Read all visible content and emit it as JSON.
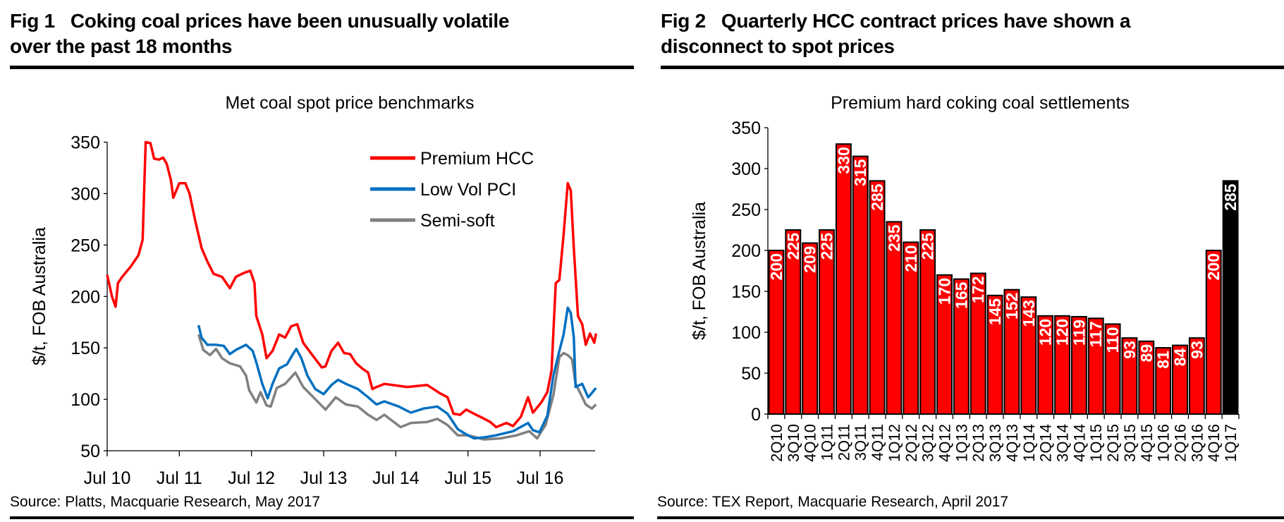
{
  "fig1": {
    "number": "Fig 1",
    "title_line1": "Coking coal prices have been unusually volatile",
    "title_line2": "over the past 18 months",
    "source": "Source: Platts, Macquarie Research, May 2017"
  },
  "fig2": {
    "number": "Fig 2",
    "title_line1": "Quarterly HCC contract prices have shown a",
    "title_line2": "disconnect to spot prices",
    "source": "Source: TEX Report, Macquarie Research, April 2017"
  },
  "chart_data": [
    {
      "type": "line",
      "title": "Met coal spot price benchmarks",
      "xlabel": "",
      "ylabel": "$/t, FOB Australia",
      "ylim": [
        50,
        350
      ],
      "yticks": [
        50,
        100,
        150,
        200,
        250,
        300,
        350
      ],
      "xticks": [
        "Jul 10",
        "Jul 11",
        "Jul 12",
        "Jul 13",
        "Jul 14",
        "Jul 15",
        "Jul 16"
      ],
      "xlim": [
        "2010-07-01",
        "2017-04-10"
      ],
      "grid": false,
      "legend": "top-right",
      "series": [
        {
          "name": "Premium HCC",
          "color": "#ff0000",
          "points": [
            [
              "2010-07-01",
              221
            ],
            [
              "2010-07-25",
              200
            ],
            [
              "2010-08-13",
              190
            ],
            [
              "2010-08-25",
              213
            ],
            [
              "2010-09-16",
              219
            ],
            [
              "2010-10-28",
              229
            ],
            [
              "2010-12-07",
              240
            ],
            [
              "2010-12-28",
              255
            ],
            [
              "2011-01-07",
              313
            ],
            [
              "2011-01-13",
              350
            ],
            [
              "2011-02-07",
              349
            ],
            [
              "2011-02-25",
              334
            ],
            [
              "2011-03-19",
              333
            ],
            [
              "2011-04-10",
              335
            ],
            [
              "2011-04-28",
              329
            ],
            [
              "2011-05-19",
              313
            ],
            [
              "2011-06-01",
              296
            ],
            [
              "2011-07-01",
              310
            ],
            [
              "2011-08-01",
              310
            ],
            [
              "2011-08-22",
              300
            ],
            [
              "2011-09-21",
              273
            ],
            [
              "2011-10-22",
              247
            ],
            [
              "2011-11-21",
              234
            ],
            [
              "2011-12-22",
              222
            ],
            [
              "2012-02-04",
              219
            ],
            [
              "2012-03-13",
              208
            ],
            [
              "2012-04-13",
              219
            ],
            [
              "2012-05-25",
              223
            ],
            [
              "2012-06-25",
              225
            ],
            [
              "2012-07-16",
              213
            ],
            [
              "2012-07-25",
              181
            ],
            [
              "2012-08-25",
              163
            ],
            [
              "2012-09-16",
              140
            ],
            [
              "2012-10-16",
              147
            ],
            [
              "2012-11-19",
              163
            ],
            [
              "2012-12-19",
              160
            ],
            [
              "2013-01-19",
              171
            ],
            [
              "2013-02-19",
              173
            ],
            [
              "2013-03-19",
              155
            ],
            [
              "2013-05-01",
              144
            ],
            [
              "2013-06-22",
              131
            ],
            [
              "2013-07-10",
              132
            ],
            [
              "2013-08-10",
              147
            ],
            [
              "2013-09-13",
              155
            ],
            [
              "2013-10-13",
              145
            ],
            [
              "2013-11-13",
              144
            ],
            [
              "2013-12-13",
              135
            ],
            [
              "2014-01-13",
              130
            ],
            [
              "2014-02-13",
              126
            ],
            [
              "2014-03-04",
              110
            ],
            [
              "2014-03-25",
              112
            ],
            [
              "2014-05-04",
              115
            ],
            [
              "2014-08-28",
              112
            ],
            [
              "2014-12-07",
              114
            ],
            [
              "2015-02-10",
              106
            ],
            [
              "2015-03-19",
              102
            ],
            [
              "2015-04-19",
              86
            ],
            [
              "2015-05-22",
              85
            ],
            [
              "2015-06-22",
              90
            ],
            [
              "2015-08-01",
              86
            ],
            [
              "2015-09-13",
              82
            ],
            [
              "2015-10-22",
              78
            ],
            [
              "2015-11-22",
              73
            ],
            [
              "2016-01-13",
              77
            ],
            [
              "2016-02-16",
              74
            ],
            [
              "2016-03-25",
              83
            ],
            [
              "2016-05-01",
              102
            ],
            [
              "2016-05-25",
              87
            ],
            [
              "2016-07-07",
              97
            ],
            [
              "2016-08-07",
              107
            ],
            [
              "2016-08-28",
              128
            ],
            [
              "2016-09-19",
              213
            ],
            [
              "2016-10-07",
              216
            ],
            [
              "2016-10-28",
              260
            ],
            [
              "2016-11-19",
              310
            ],
            [
              "2016-12-04",
              303
            ],
            [
              "2016-12-19",
              247
            ],
            [
              "2017-01-10",
              181
            ],
            [
              "2017-02-01",
              173
            ],
            [
              "2017-02-19",
              153
            ],
            [
              "2017-03-10",
              164
            ],
            [
              "2017-04-01",
              155
            ],
            [
              "2017-04-10",
              164
            ]
          ]
        },
        {
          "name": "Low Vol PCI",
          "color": "#0070c0",
          "points": [
            [
              "2011-10-07",
              172
            ],
            [
              "2011-10-22",
              160
            ],
            [
              "2011-11-21",
              153
            ],
            [
              "2012-01-04",
              153
            ],
            [
              "2012-02-13",
              152
            ],
            [
              "2012-03-13",
              144
            ],
            [
              "2012-04-13",
              148
            ],
            [
              "2012-06-04",
              153
            ],
            [
              "2012-07-07",
              147
            ],
            [
              "2012-07-25",
              136
            ],
            [
              "2012-08-25",
              115
            ],
            [
              "2012-09-22",
              101
            ],
            [
              "2012-10-16",
              115
            ],
            [
              "2012-11-19",
              130
            ],
            [
              "2012-12-28",
              134
            ],
            [
              "2013-01-28",
              144
            ],
            [
              "2013-02-15",
              149
            ],
            [
              "2013-03-10",
              140
            ],
            [
              "2013-04-10",
              123
            ],
            [
              "2013-05-19",
              110
            ],
            [
              "2013-07-01",
              105
            ],
            [
              "2013-08-10",
              114
            ],
            [
              "2013-09-13",
              119
            ],
            [
              "2013-10-22",
              115
            ],
            [
              "2013-12-22",
              110
            ],
            [
              "2014-02-13",
              102
            ],
            [
              "2014-03-25",
              95
            ],
            [
              "2014-05-04",
              98
            ],
            [
              "2014-07-16",
              93
            ],
            [
              "2014-09-16",
              87
            ],
            [
              "2014-11-19",
              91
            ],
            [
              "2015-01-28",
              93
            ],
            [
              "2015-03-19",
              86
            ],
            [
              "2015-05-10",
              71
            ],
            [
              "2015-06-22",
              66
            ],
            [
              "2015-08-01",
              62
            ],
            [
              "2015-09-22",
              63
            ],
            [
              "2015-11-22",
              65
            ],
            [
              "2016-02-16",
              69
            ],
            [
              "2016-05-01",
              77
            ],
            [
              "2016-05-25",
              70
            ],
            [
              "2016-06-28",
              68
            ],
            [
              "2016-08-07",
              84
            ],
            [
              "2016-09-07",
              123
            ],
            [
              "2016-10-07",
              147
            ],
            [
              "2016-10-28",
              163
            ],
            [
              "2016-11-19",
              189
            ],
            [
              "2016-12-04",
              184
            ],
            [
              "2016-12-19",
              160
            ],
            [
              "2016-12-28",
              112
            ],
            [
              "2017-02-01",
              115
            ],
            [
              "2017-03-01",
              102
            ],
            [
              "2017-04-10",
              111
            ]
          ]
        },
        {
          "name": "Semi-soft",
          "color": "#808080",
          "points": [
            [
              "2011-10-07",
              163
            ],
            [
              "2011-11-01",
              148
            ],
            [
              "2011-12-04",
              143
            ],
            [
              "2012-01-04",
              149
            ],
            [
              "2012-02-04",
              140
            ],
            [
              "2012-03-13",
              135
            ],
            [
              "2012-05-04",
              132
            ],
            [
              "2012-06-04",
              123
            ],
            [
              "2012-06-19",
              109
            ],
            [
              "2012-07-25",
              97
            ],
            [
              "2012-08-16",
              107
            ],
            [
              "2012-09-16",
              94
            ],
            [
              "2012-10-07",
              93
            ],
            [
              "2012-11-07",
              111
            ],
            [
              "2012-12-19",
              115
            ],
            [
              "2013-02-10",
              126
            ],
            [
              "2013-03-19",
              112
            ],
            [
              "2013-05-10",
              102
            ],
            [
              "2013-07-10",
              90
            ],
            [
              "2013-09-01",
              102
            ],
            [
              "2013-10-22",
              95
            ],
            [
              "2013-12-22",
              93
            ],
            [
              "2014-02-13",
              85
            ],
            [
              "2014-03-25",
              80
            ],
            [
              "2014-05-04",
              85
            ],
            [
              "2014-07-25",
              73
            ],
            [
              "2014-09-16",
              77
            ],
            [
              "2014-12-07",
              78
            ],
            [
              "2015-01-28",
              81
            ],
            [
              "2015-03-19",
              75
            ],
            [
              "2015-05-10",
              65
            ],
            [
              "2015-07-01",
              65
            ],
            [
              "2015-09-22",
              61
            ],
            [
              "2015-12-13",
              62
            ],
            [
              "2016-03-04",
              65
            ],
            [
              "2016-05-07",
              69
            ],
            [
              "2016-06-16",
              62
            ],
            [
              "2016-07-28",
              75
            ],
            [
              "2016-09-07",
              104
            ],
            [
              "2016-10-07",
              141
            ],
            [
              "2016-10-28",
              145
            ],
            [
              "2016-11-19",
              143
            ],
            [
              "2016-12-10",
              139
            ],
            [
              "2016-12-28",
              115
            ],
            [
              "2017-01-19",
              107
            ],
            [
              "2017-02-19",
              95
            ],
            [
              "2017-03-19",
              91
            ],
            [
              "2017-04-10",
              95
            ]
          ]
        }
      ]
    },
    {
      "type": "bar",
      "title": "Premium hard coking coal settlements",
      "xlabel": "",
      "ylabel": "$/t, FOB Australia",
      "ylim": [
        0,
        350
      ],
      "yticks": [
        0,
        50,
        100,
        150,
        200,
        250,
        300,
        350
      ],
      "grid": false,
      "data_labels": true,
      "categories": [
        "2Q10",
        "3Q10",
        "4Q10",
        "1Q11",
        "2Q11",
        "3Q11",
        "4Q11",
        "1Q12",
        "2Q12",
        "3Q12",
        "4Q12",
        "1Q13",
        "2Q13",
        "3Q13",
        "4Q13",
        "1Q14",
        "2Q14",
        "3Q14",
        "4Q14",
        "1Q15",
        "2Q15",
        "3Q15",
        "4Q15",
        "1Q16",
        "2Q16",
        "3Q16",
        "4Q16",
        "1Q17"
      ],
      "values": [
        200,
        225,
        209,
        225,
        330,
        315,
        285,
        235,
        210,
        225,
        170,
        165,
        172,
        145,
        152,
        143,
        120,
        120,
        119,
        117,
        110,
        93,
        89,
        81,
        84,
        93,
        200,
        285
      ],
      "bar_color": "#ff0000",
      "highlight_color": "#000000",
      "highlight_category": "1Q17"
    }
  ]
}
